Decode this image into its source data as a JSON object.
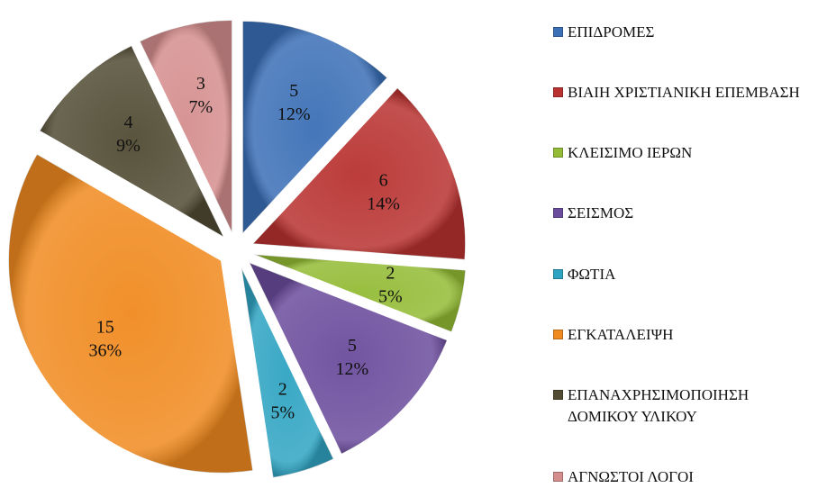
{
  "chart_data": {
    "type": "pie",
    "categories": [
      "ΕΠΙΔΡΟΜΕΣ",
      "ΒΙΑΙΗ ΧΡΙΣΤΙΑΝΙΚΗ ΕΠΕΜΒΑΣΗ",
      "ΚΛΕΙΣΙΜΟ ΙΕΡΩΝ",
      "ΣΕΙΣΜΟΣ",
      "ΦΩΤΙΑ",
      "ΕΓΚΑΤΑΛΕΙΨΗ",
      "ΕΠΑΝΑΧΡΗΣΙΜΟΠΟΙΗΣΗ ΔΟΜΙΚΟΥ ΥΛΙΚΟΥ",
      "ΑΓΝΩΣΤΟΙ ΛΟΓΟΙ"
    ],
    "values": [
      5,
      6,
      2,
      5,
      2,
      15,
      4,
      3
    ],
    "percent_labels": [
      "12%",
      "14%",
      "5%",
      "12%",
      "5%",
      "36%",
      "9%",
      "7%"
    ],
    "colors": [
      "#3b6fb6",
      "#b83230",
      "#93bb35",
      "#6b4c9c",
      "#2fa4c2",
      "#f08a1f",
      "#514b33",
      "#d58e8e"
    ],
    "legend": "right"
  }
}
